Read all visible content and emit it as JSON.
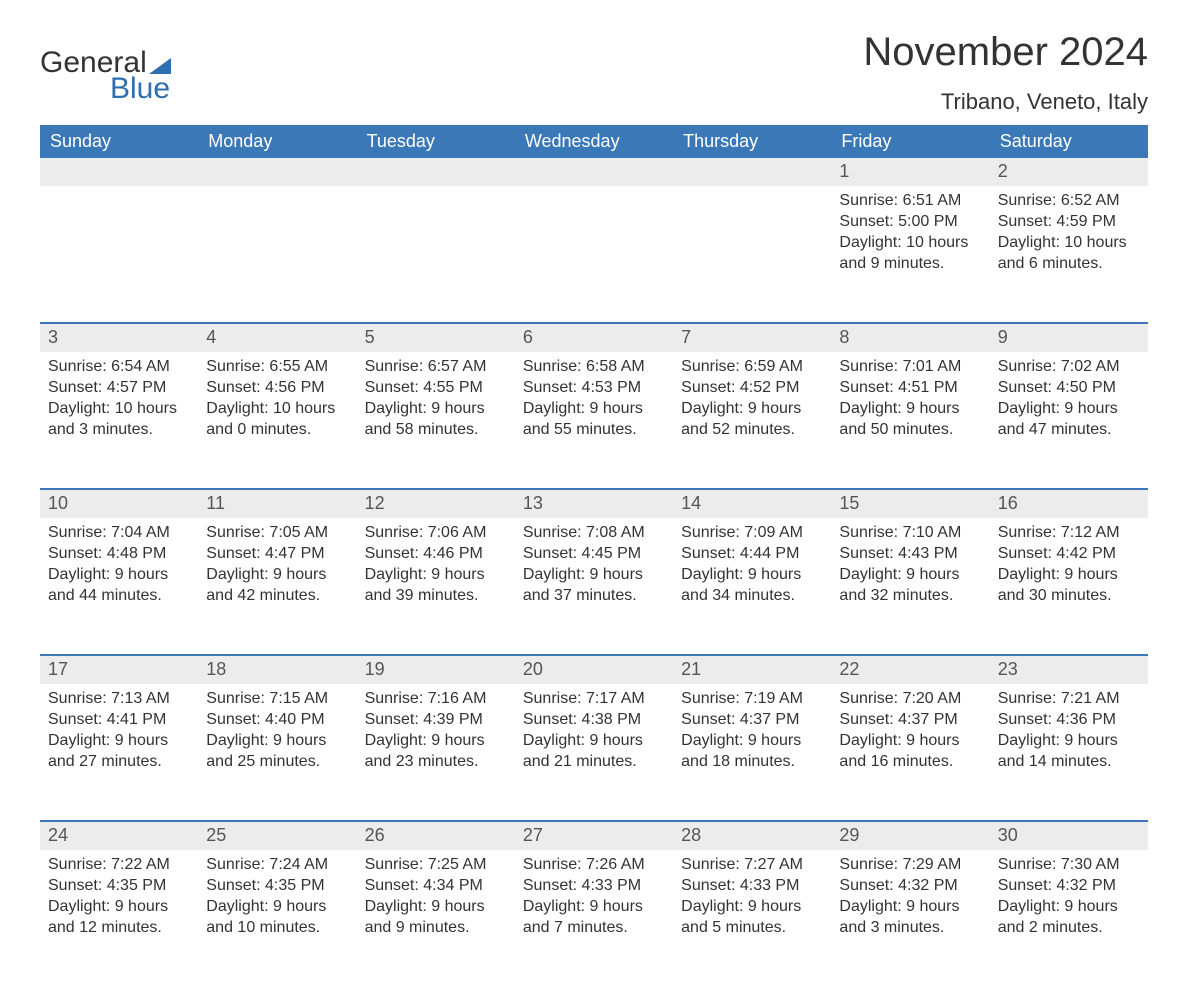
{
  "brand": {
    "part1": "General",
    "part2": "Blue"
  },
  "title": "November 2024",
  "location": "Tribano, Veneto, Italy",
  "colors": {
    "header_bg": "#3a78b8",
    "header_text": "#ffffff",
    "daynum_bg": "#ececec",
    "rule": "#3a78b8",
    "body_text": "#333333",
    "brand_blue": "#2f6fb0"
  },
  "fonts": {
    "title_pt": 40,
    "location_pt": 22,
    "dow_pt": 18,
    "daynum_pt": 18,
    "body_pt": 16
  },
  "days_of_week": [
    "Sunday",
    "Monday",
    "Tuesday",
    "Wednesday",
    "Thursday",
    "Friday",
    "Saturday"
  ],
  "weeks": [
    [
      null,
      null,
      null,
      null,
      null,
      {
        "n": 1,
        "sunrise": "6:51 AM",
        "sunset": "5:00 PM",
        "daylight": "10 hours and 9 minutes."
      },
      {
        "n": 2,
        "sunrise": "6:52 AM",
        "sunset": "4:59 PM",
        "daylight": "10 hours and 6 minutes."
      }
    ],
    [
      {
        "n": 3,
        "sunrise": "6:54 AM",
        "sunset": "4:57 PM",
        "daylight": "10 hours and 3 minutes."
      },
      {
        "n": 4,
        "sunrise": "6:55 AM",
        "sunset": "4:56 PM",
        "daylight": "10 hours and 0 minutes."
      },
      {
        "n": 5,
        "sunrise": "6:57 AM",
        "sunset": "4:55 PM",
        "daylight": "9 hours and 58 minutes."
      },
      {
        "n": 6,
        "sunrise": "6:58 AM",
        "sunset": "4:53 PM",
        "daylight": "9 hours and 55 minutes."
      },
      {
        "n": 7,
        "sunrise": "6:59 AM",
        "sunset": "4:52 PM",
        "daylight": "9 hours and 52 minutes."
      },
      {
        "n": 8,
        "sunrise": "7:01 AM",
        "sunset": "4:51 PM",
        "daylight": "9 hours and 50 minutes."
      },
      {
        "n": 9,
        "sunrise": "7:02 AM",
        "sunset": "4:50 PM",
        "daylight": "9 hours and 47 minutes."
      }
    ],
    [
      {
        "n": 10,
        "sunrise": "7:04 AM",
        "sunset": "4:48 PM",
        "daylight": "9 hours and 44 minutes."
      },
      {
        "n": 11,
        "sunrise": "7:05 AM",
        "sunset": "4:47 PM",
        "daylight": "9 hours and 42 minutes."
      },
      {
        "n": 12,
        "sunrise": "7:06 AM",
        "sunset": "4:46 PM",
        "daylight": "9 hours and 39 minutes."
      },
      {
        "n": 13,
        "sunrise": "7:08 AM",
        "sunset": "4:45 PM",
        "daylight": "9 hours and 37 minutes."
      },
      {
        "n": 14,
        "sunrise": "7:09 AM",
        "sunset": "4:44 PM",
        "daylight": "9 hours and 34 minutes."
      },
      {
        "n": 15,
        "sunrise": "7:10 AM",
        "sunset": "4:43 PM",
        "daylight": "9 hours and 32 minutes."
      },
      {
        "n": 16,
        "sunrise": "7:12 AM",
        "sunset": "4:42 PM",
        "daylight": "9 hours and 30 minutes."
      }
    ],
    [
      {
        "n": 17,
        "sunrise": "7:13 AM",
        "sunset": "4:41 PM",
        "daylight": "9 hours and 27 minutes."
      },
      {
        "n": 18,
        "sunrise": "7:15 AM",
        "sunset": "4:40 PM",
        "daylight": "9 hours and 25 minutes."
      },
      {
        "n": 19,
        "sunrise": "7:16 AM",
        "sunset": "4:39 PM",
        "daylight": "9 hours and 23 minutes."
      },
      {
        "n": 20,
        "sunrise": "7:17 AM",
        "sunset": "4:38 PM",
        "daylight": "9 hours and 21 minutes."
      },
      {
        "n": 21,
        "sunrise": "7:19 AM",
        "sunset": "4:37 PM",
        "daylight": "9 hours and 18 minutes."
      },
      {
        "n": 22,
        "sunrise": "7:20 AM",
        "sunset": "4:37 PM",
        "daylight": "9 hours and 16 minutes."
      },
      {
        "n": 23,
        "sunrise": "7:21 AM",
        "sunset": "4:36 PM",
        "daylight": "9 hours and 14 minutes."
      }
    ],
    [
      {
        "n": 24,
        "sunrise": "7:22 AM",
        "sunset": "4:35 PM",
        "daylight": "9 hours and 12 minutes."
      },
      {
        "n": 25,
        "sunrise": "7:24 AM",
        "sunset": "4:35 PM",
        "daylight": "9 hours and 10 minutes."
      },
      {
        "n": 26,
        "sunrise": "7:25 AM",
        "sunset": "4:34 PM",
        "daylight": "9 hours and 9 minutes."
      },
      {
        "n": 27,
        "sunrise": "7:26 AM",
        "sunset": "4:33 PM",
        "daylight": "9 hours and 7 minutes."
      },
      {
        "n": 28,
        "sunrise": "7:27 AM",
        "sunset": "4:33 PM",
        "daylight": "9 hours and 5 minutes."
      },
      {
        "n": 29,
        "sunrise": "7:29 AM",
        "sunset": "4:32 PM",
        "daylight": "9 hours and 3 minutes."
      },
      {
        "n": 30,
        "sunrise": "7:30 AM",
        "sunset": "4:32 PM",
        "daylight": "9 hours and 2 minutes."
      }
    ]
  ],
  "labels": {
    "sunrise": "Sunrise: ",
    "sunset": "Sunset: ",
    "daylight": "Daylight: "
  }
}
